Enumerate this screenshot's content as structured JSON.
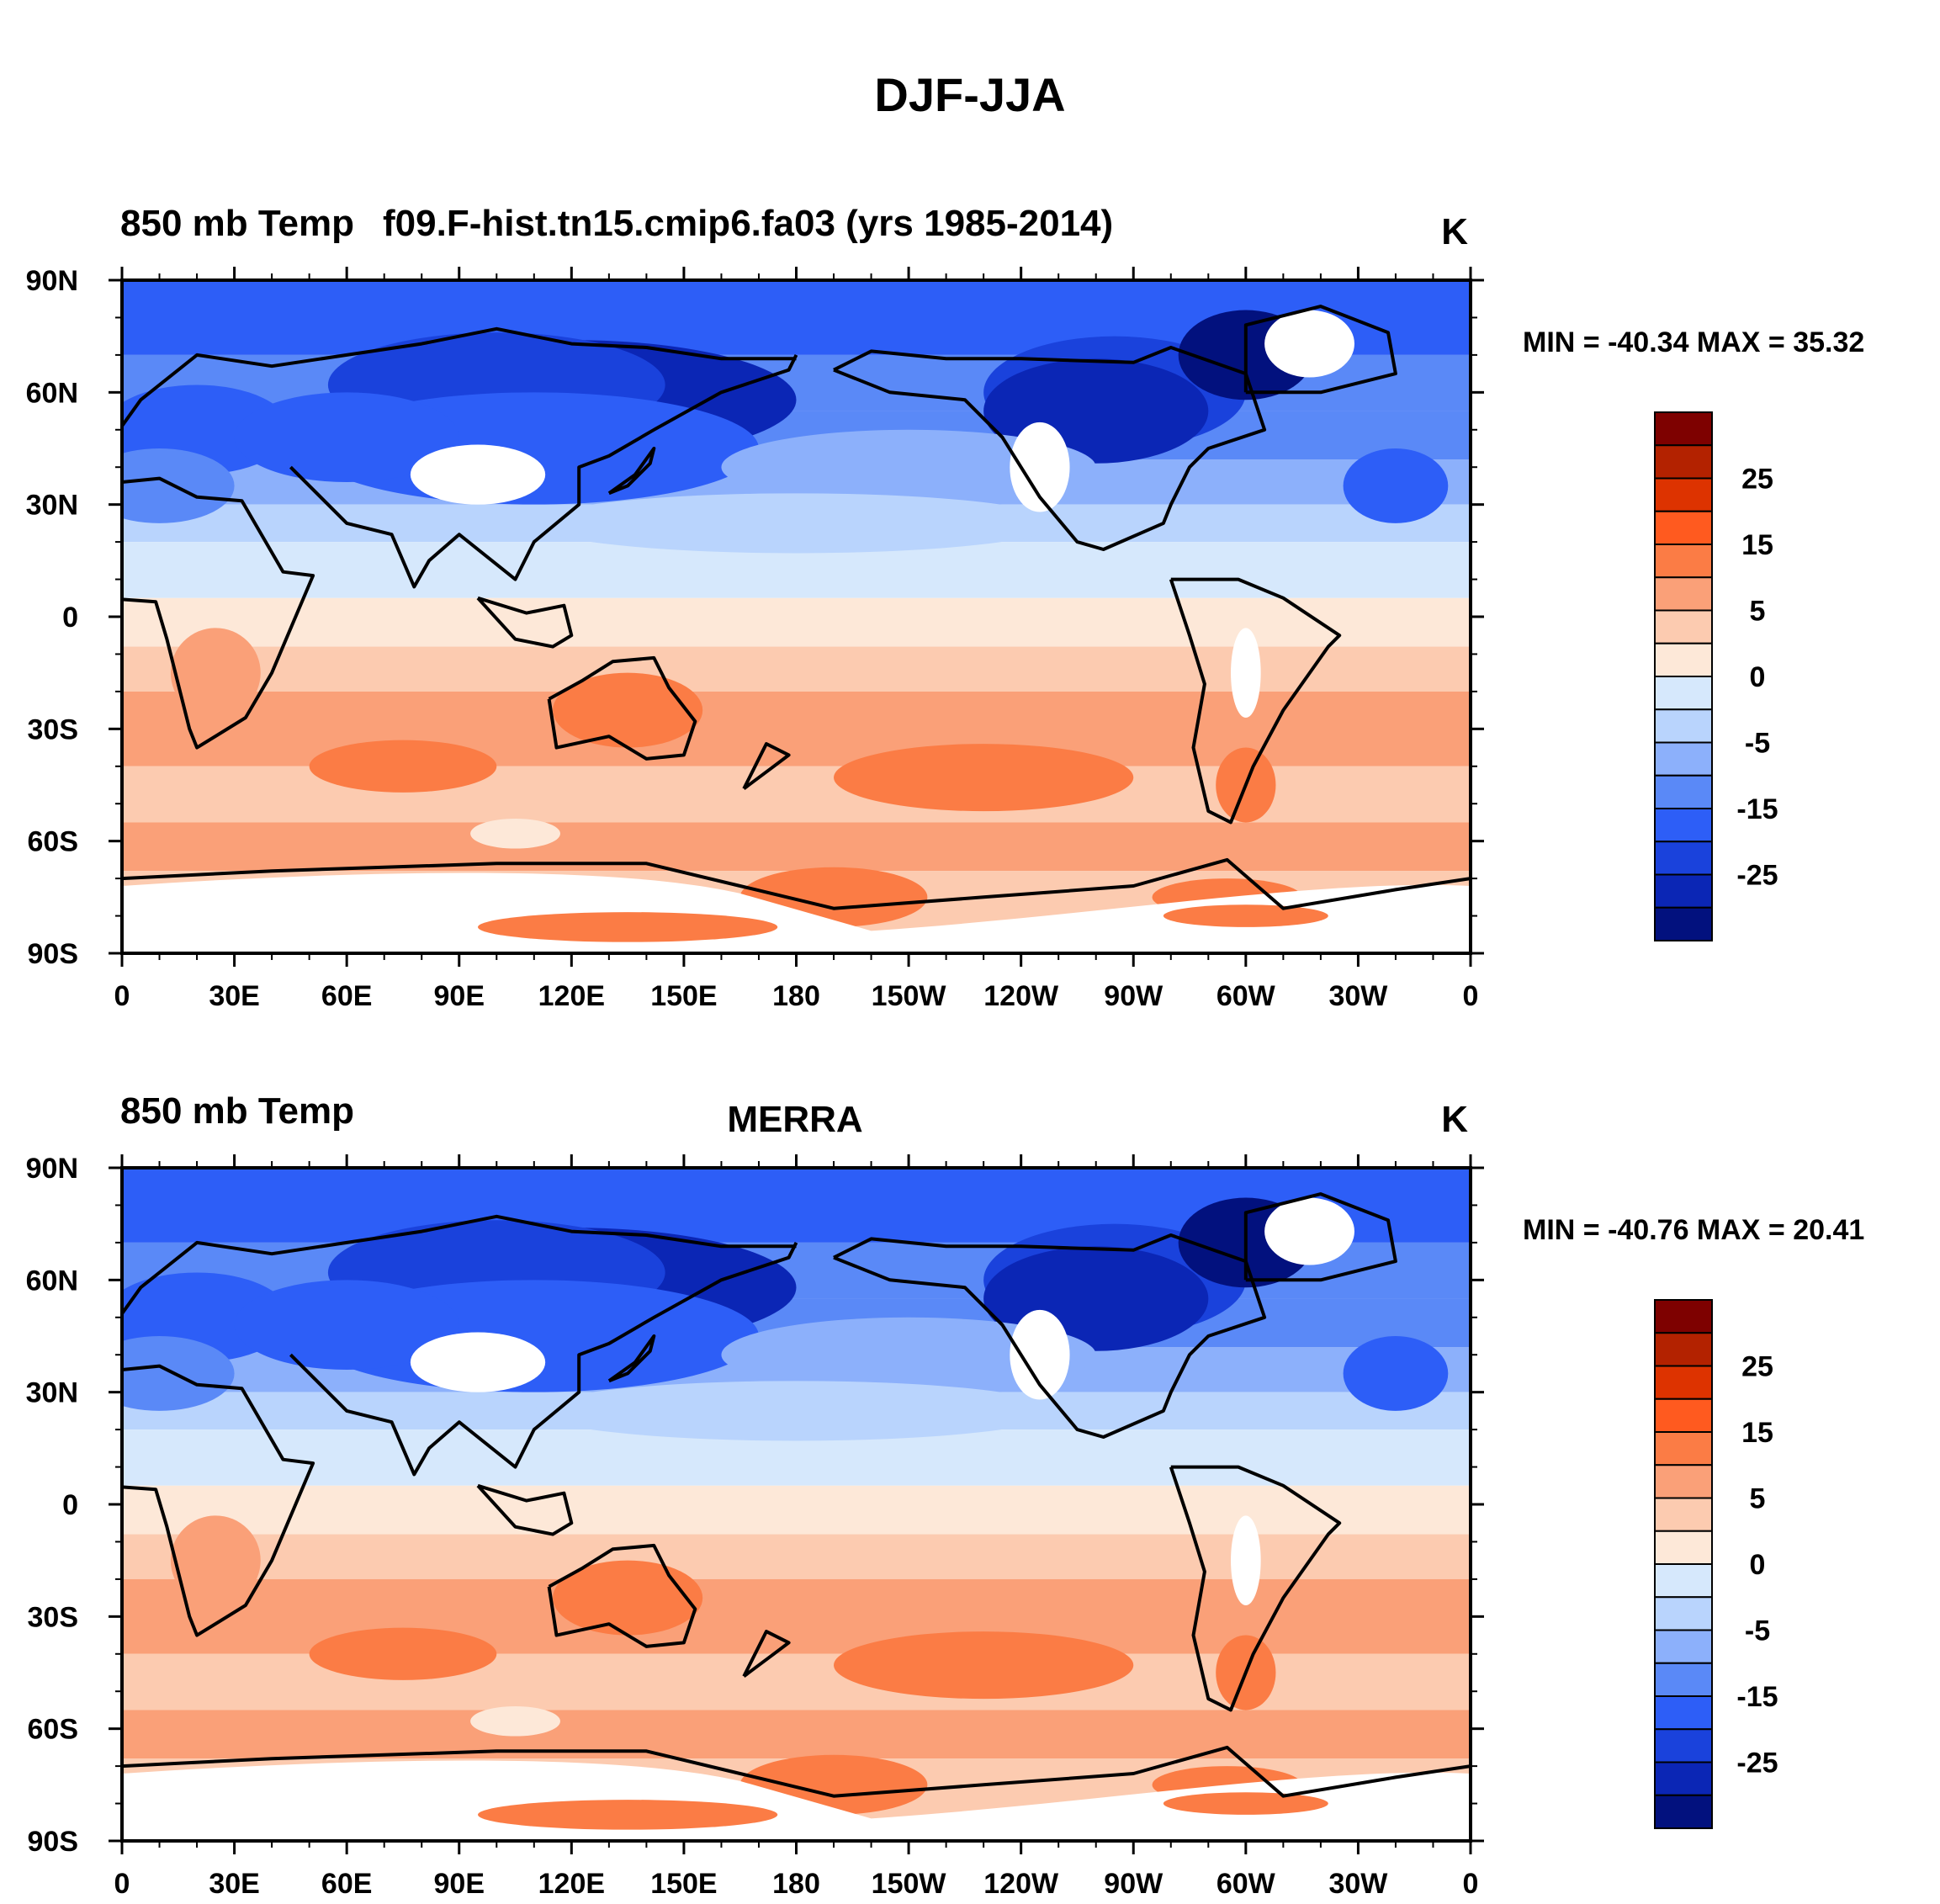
{
  "figure": {
    "title": "DJF-JJA",
    "colors": {
      "land_outline": "#000000",
      "missing": "#ffffff"
    }
  },
  "chart_data": [
    {
      "type": "heatmap",
      "title_left": "850 mb Temp",
      "title_center": "f09.F-hist.tn15.cmip6.fa03 (yrs 1985-2014)",
      "units": "K",
      "min_max_label": "MIN = -40.34 MAX =  35.32",
      "min": -40.34,
      "max": 35.32,
      "xlabel": "",
      "ylabel": "",
      "xlim": [
        0,
        360
      ],
      "ylim": [
        -90,
        90
      ],
      "x_ticks": [
        "0",
        "30E",
        "60E",
        "90E",
        "120E",
        "150E",
        "180",
        "150W",
        "120W",
        "90W",
        "60W",
        "30W",
        "0"
      ],
      "y_ticks": [
        "90N",
        "60N",
        "30N",
        "0",
        "30S",
        "60S",
        "90S"
      ],
      "colorbar_levels": [
        -35,
        -30,
        -25,
        -20,
        -15,
        -10,
        -5,
        -2,
        0,
        2,
        5,
        10,
        15,
        20,
        25,
        30
      ],
      "colorbar_labels": [
        "25",
        "15",
        "5",
        "0",
        "-5",
        "-15",
        "-25"
      ]
    },
    {
      "type": "heatmap",
      "title_left": "850 mb Temp",
      "title_center": "MERRA",
      "units": "K",
      "min_max_label": "MIN = -40.76 MAX =  20.41",
      "min": -40.76,
      "max": 20.41,
      "xlabel": "",
      "ylabel": "",
      "xlim": [
        0,
        360
      ],
      "ylim": [
        -90,
        90
      ],
      "x_ticks": [
        "0",
        "30E",
        "60E",
        "90E",
        "120E",
        "150E",
        "180",
        "150W",
        "120W",
        "90W",
        "60W",
        "30W",
        "0"
      ],
      "y_ticks": [
        "90N",
        "60N",
        "30N",
        "0",
        "30S",
        "60S",
        "90S"
      ],
      "colorbar_levels": [
        -35,
        -30,
        -25,
        -20,
        -15,
        -10,
        -5,
        -2,
        0,
        2,
        5,
        10,
        15,
        20,
        25,
        30
      ],
      "colorbar_labels": [
        "25",
        "15",
        "5",
        "0",
        "-5",
        "-15",
        "-25"
      ]
    }
  ],
  "colorbar_colors": [
    "#7e0100",
    "#b32200",
    "#dd3300",
    "#ff5a1f",
    "#fb7c45",
    "#faa078",
    "#fccbb0",
    "#fde8d8",
    "#d6e8fc",
    "#b9d4fd",
    "#8cb0fb",
    "#5a89f7",
    "#2d5ef7",
    "#1a42dc",
    "#0b26b5",
    "#02117e"
  ]
}
